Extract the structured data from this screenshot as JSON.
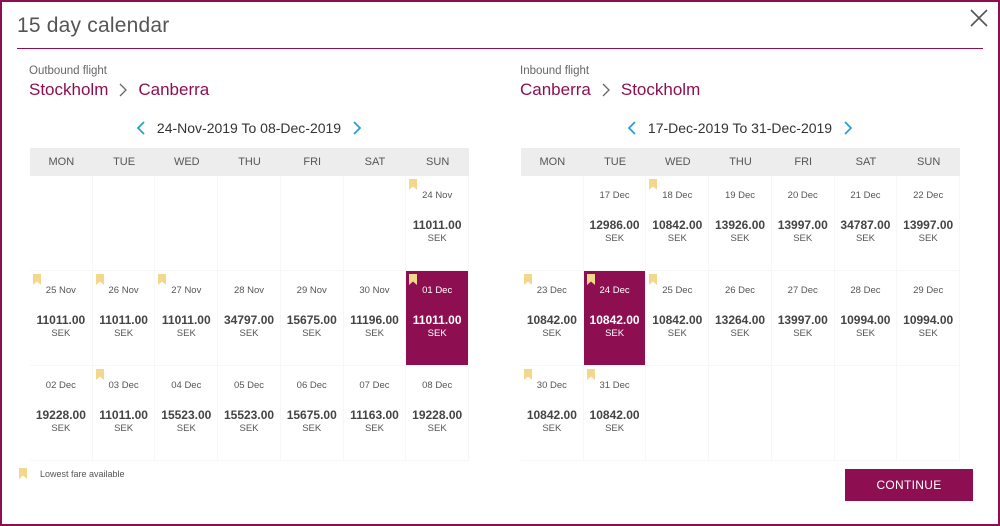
{
  "dialog": {
    "title": "15 day calendar"
  },
  "colors": {
    "brand": "#8d0f52",
    "lowest_fare_flag": "#f3d78a"
  },
  "outbound": {
    "label": "Outbound flight",
    "from": "Stockholm",
    "to": "Canberra",
    "range": "24-Nov-2019 To 08-Dec-2019",
    "weekdays": [
      "MON",
      "TUE",
      "WED",
      "THU",
      "FRI",
      "SAT",
      "SUN"
    ],
    "weeks": [
      [
        null,
        null,
        null,
        null,
        null,
        null,
        {
          "date": "24 Nov",
          "price": "11011.00",
          "currency": "SEK",
          "lowest": true,
          "selected": false
        }
      ],
      [
        {
          "date": "25 Nov",
          "price": "11011.00",
          "currency": "SEK",
          "lowest": true,
          "selected": false
        },
        {
          "date": "26 Nov",
          "price": "11011.00",
          "currency": "SEK",
          "lowest": true,
          "selected": false
        },
        {
          "date": "27 Nov",
          "price": "11011.00",
          "currency": "SEK",
          "lowest": true,
          "selected": false
        },
        {
          "date": "28 Nov",
          "price": "34797.00",
          "currency": "SEK",
          "lowest": false,
          "selected": false
        },
        {
          "date": "29 Nov",
          "price": "15675.00",
          "currency": "SEK",
          "lowest": false,
          "selected": false
        },
        {
          "date": "30 Nov",
          "price": "11196.00",
          "currency": "SEK",
          "lowest": false,
          "selected": false
        },
        {
          "date": "01 Dec",
          "price": "11011.00",
          "currency": "SEK",
          "lowest": true,
          "selected": true
        }
      ],
      [
        {
          "date": "02 Dec",
          "price": "19228.00",
          "currency": "SEK",
          "lowest": false,
          "selected": false
        },
        {
          "date": "03 Dec",
          "price": "11011.00",
          "currency": "SEK",
          "lowest": true,
          "selected": false
        },
        {
          "date": "04 Dec",
          "price": "15523.00",
          "currency": "SEK",
          "lowest": false,
          "selected": false
        },
        {
          "date": "05 Dec",
          "price": "15523.00",
          "currency": "SEK",
          "lowest": false,
          "selected": false
        },
        {
          "date": "06 Dec",
          "price": "15675.00",
          "currency": "SEK",
          "lowest": false,
          "selected": false
        },
        {
          "date": "07 Dec",
          "price": "11163.00",
          "currency": "SEK",
          "lowest": false,
          "selected": false
        },
        {
          "date": "08 Dec",
          "price": "19228.00",
          "currency": "SEK",
          "lowest": false,
          "selected": false
        }
      ]
    ]
  },
  "inbound": {
    "label": "Inbound flight",
    "from": "Canberra",
    "to": "Stockholm",
    "range": "17-Dec-2019 To 31-Dec-2019",
    "weekdays": [
      "MON",
      "TUE",
      "WED",
      "THU",
      "FRI",
      "SAT",
      "SUN"
    ],
    "weeks": [
      [
        null,
        {
          "date": "17 Dec",
          "price": "12986.00",
          "currency": "SEK",
          "lowest": false,
          "selected": false
        },
        {
          "date": "18 Dec",
          "price": "10842.00",
          "currency": "SEK",
          "lowest": true,
          "selected": false
        },
        {
          "date": "19 Dec",
          "price": "13926.00",
          "currency": "SEK",
          "lowest": false,
          "selected": false
        },
        {
          "date": "20 Dec",
          "price": "13997.00",
          "currency": "SEK",
          "lowest": false,
          "selected": false
        },
        {
          "date": "21 Dec",
          "price": "34787.00",
          "currency": "SEK",
          "lowest": false,
          "selected": false
        },
        {
          "date": "22 Dec",
          "price": "13997.00",
          "currency": "SEK",
          "lowest": false,
          "selected": false
        }
      ],
      [
        {
          "date": "23 Dec",
          "price": "10842.00",
          "currency": "SEK",
          "lowest": true,
          "selected": false
        },
        {
          "date": "24 Dec",
          "price": "10842.00",
          "currency": "SEK",
          "lowest": true,
          "selected": true
        },
        {
          "date": "25 Dec",
          "price": "10842.00",
          "currency": "SEK",
          "lowest": true,
          "selected": false
        },
        {
          "date": "26 Dec",
          "price": "13264.00",
          "currency": "SEK",
          "lowest": false,
          "selected": false
        },
        {
          "date": "27 Dec",
          "price": "13997.00",
          "currency": "SEK",
          "lowest": false,
          "selected": false
        },
        {
          "date": "28 Dec",
          "price": "10994.00",
          "currency": "SEK",
          "lowest": false,
          "selected": false
        },
        {
          "date": "29 Dec",
          "price": "10994.00",
          "currency": "SEK",
          "lowest": false,
          "selected": false
        }
      ],
      [
        {
          "date": "30 Dec",
          "price": "10842.00",
          "currency": "SEK",
          "lowest": true,
          "selected": false
        },
        {
          "date": "31 Dec",
          "price": "10842.00",
          "currency": "SEK",
          "lowest": true,
          "selected": false
        },
        null,
        null,
        null,
        null,
        null
      ]
    ]
  },
  "legend": {
    "label": "Lowest fare available",
    "icon": "bookmark-icon"
  },
  "continue_label": "CONTINUE"
}
